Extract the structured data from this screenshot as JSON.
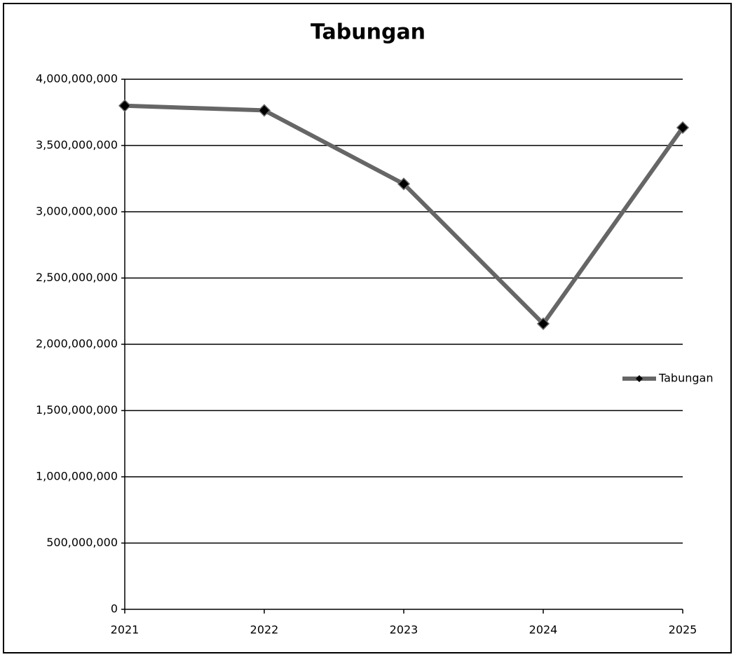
{
  "chart_data": {
    "type": "line",
    "title": "Tabungan",
    "categories": [
      "2021",
      "2022",
      "2023",
      "2024",
      "2025"
    ],
    "series": [
      {
        "name": "Tabungan",
        "color": "#666666",
        "marker_color": "#000000",
        "values": [
          3800000000,
          3765000000,
          3210000000,
          2155000000,
          3635000000
        ]
      }
    ],
    "ylim": [
      0,
      4000000000
    ],
    "yticks": [
      0,
      {
        "value": 500000000,
        "label": "500,000,000"
      },
      {
        "value": 1000000000,
        "label": "1,000,000,000"
      },
      {
        "value": 1500000000,
        "label": "1,500,000,000"
      },
      {
        "value": 2000000000,
        "label": "2,000,000,000"
      },
      {
        "value": 2500000000,
        "label": "2,500,000,000"
      },
      {
        "value": 3000000000,
        "label": "3,000,000,000"
      },
      {
        "value": 3500000000,
        "label": "3,500,000,000"
      },
      {
        "value": 4000000000,
        "label": "4,000,000,000"
      }
    ],
    "grid": true,
    "legend": "right"
  }
}
